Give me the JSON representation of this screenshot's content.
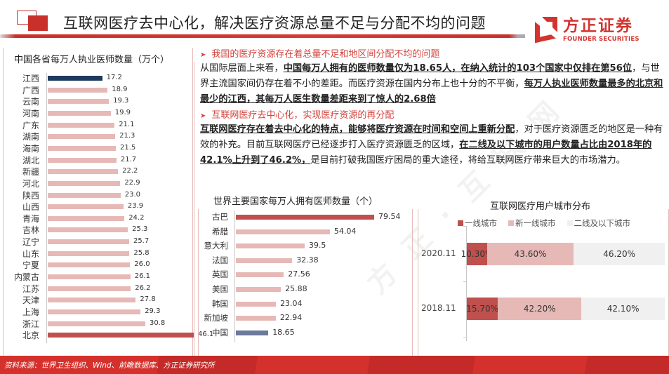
{
  "header": {
    "title": "互联网医疗去中心化，解决医疗资源总量不足与分配不均的问题",
    "logo_cn": "方正证券",
    "logo_en": "FOUNDER SECURITIES"
  },
  "text": {
    "bullet1": "我国的医疗资源存在着总量不足和地区间分配不均的问题",
    "para1_a": "从国际层面上来看，",
    "para1_b": "中国每万人拥有的医师数量仅为18.65人，在纳入统计的103个国家中仅排在第56位",
    "para1_c": "，与世界主流国家间仍存在着不小的差距。而医疗资源在国内分布上也十分的不平衡，",
    "para1_d": "每万人执业医师数量最多的北京和最少的江西，其每万人医生数量差距来到了惊人的2.68倍",
    "bullet2": "互联网医疗去中心化，实现医疗资源的再分配",
    "para2_a": "互联网医疗存在着去中心化的特点，能够将医疗资源在时间和空间上重新分配",
    "para2_b": "，对于医疗资源匮乏的地区是一种有效的补充。目前互联网医疗已经逐步打入医疗资源匮乏的区域，",
    "para2_c": "在二线及以下城市的用户数量占比由2018年的42.1%上升到了46.2%，",
    "para2_d": "是目前打破我国医疗困局的重大途径，将给互联网医疗带来巨大的市场潜力。"
  },
  "watermark": "方正·互联网",
  "footer": {
    "source": "资料来源：世界卫生组织、Wind、前瞻数据库、方正证券研究所"
  },
  "colors": {
    "brand_red": "#d4342f",
    "bar_light": "#e6b9b6",
    "bar_highlight_red": "#c0504d",
    "bar_dark_navy": "#1f3a5f",
    "bar_slate": "#6b7a9b",
    "seg_light_grey": "#f0f0f0"
  },
  "chart_data": [
    {
      "type": "bar",
      "orientation": "horizontal",
      "title": "中国各省每万人执业医师数量（万个）",
      "categories": [
        "江西",
        "广西",
        "云南",
        "河南",
        "广东",
        "湖南",
        "海南",
        "湖北",
        "新疆",
        "河北",
        "陕西",
        "山西",
        "青海",
        "吉林",
        "辽宁",
        "山东",
        "宁夏",
        "内蒙古",
        "江苏",
        "天津",
        "上海",
        "浙江",
        "北京"
      ],
      "values": [
        17.2,
        18.9,
        19.3,
        19.9,
        21.1,
        21.3,
        21.5,
        21.7,
        22.2,
        22.9,
        23.0,
        23.9,
        24.2,
        25.3,
        25.7,
        25.8,
        26.0,
        26.1,
        26.2,
        27.8,
        29.3,
        30.8,
        46.1
      ],
      "labels": [
        "17.2",
        "18.9",
        "19.3",
        "19.9",
        "21.1",
        "21.3",
        "21.5",
        "21.7",
        "22.2",
        "22.9",
        "23.0",
        "23.9",
        "24.2",
        "25.3",
        "25.7",
        "25.8",
        "26.0",
        "26.1",
        "26.2",
        "27.8",
        "29.3",
        "30.8",
        "46.1"
      ],
      "highlight": {
        "江西": "#1f3a5f",
        "北京": "#c0504d"
      },
      "xlabel": "",
      "ylabel": "",
      "grid": false
    },
    {
      "type": "bar",
      "orientation": "horizontal",
      "title": "世界主要国家每万人拥有医师数量（个）",
      "categories": [
        "古巴",
        "希腊",
        "意大利",
        "法国",
        "英国",
        "美国",
        "韩国",
        "新加坡",
        "中国"
      ],
      "values": [
        79.54,
        54.04,
        39.5,
        32.38,
        27.56,
        25.88,
        23.04,
        22.94,
        18.65
      ],
      "labels": [
        "79.54",
        "54.04",
        "39.5",
        "32.38",
        "27.56",
        "25.88",
        "23.04",
        "22.94",
        "18.65"
      ],
      "highlight": {
        "古巴": "#c0504d",
        "中国": "#6b7a9b"
      },
      "xlabel": "",
      "ylabel": "",
      "grid": false
    },
    {
      "type": "bar",
      "orientation": "horizontal",
      "stacked": "percent",
      "title": "互联网医疗用户城市分布",
      "categories": [
        "2020.11",
        "2018.11"
      ],
      "series": [
        {
          "name": "一线城市",
          "values": [
            10.3,
            15.7
          ],
          "labels": [
            "10.30%",
            "15.70%"
          ],
          "color": "#c0504d"
        },
        {
          "name": "新一线城市",
          "values": [
            43.6,
            42.2
          ],
          "labels": [
            "43.60%",
            "42.20%"
          ],
          "color": "#e6b9b6"
        },
        {
          "name": "二线及以下城市",
          "values": [
            46.2,
            42.1
          ],
          "labels": [
            "46.20%",
            "42.10%"
          ],
          "color": "#f0f0f0"
        }
      ],
      "legend_position": "top",
      "grid": false
    }
  ]
}
